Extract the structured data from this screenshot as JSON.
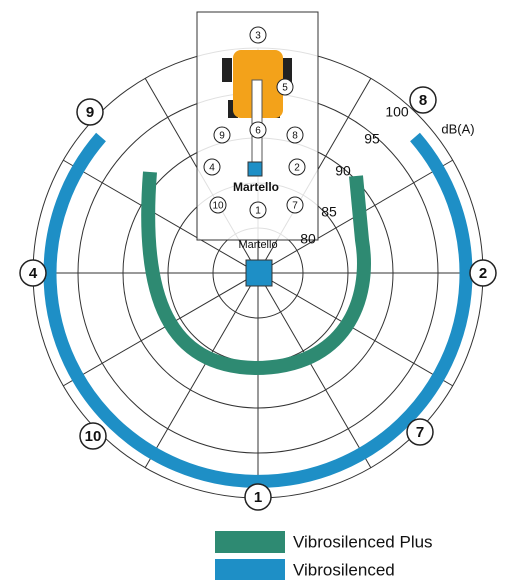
{
  "outer_positions": [
    "9",
    "8",
    "4",
    "2",
    "10",
    "7",
    "1"
  ],
  "inset_positions": [
    "3",
    "5",
    "6",
    "9",
    "8",
    "4",
    "2",
    "10",
    "1",
    "7"
  ],
  "rings": [
    "80",
    "85",
    "90",
    "95",
    "100"
  ],
  "unit": "dB(A)",
  "inset_label": "Martello",
  "center_label": "Martello",
  "legend": [
    {
      "label": "Vibrosilenced Plus"
    },
    {
      "label": "Vibrosilenced"
    }
  ]
}
